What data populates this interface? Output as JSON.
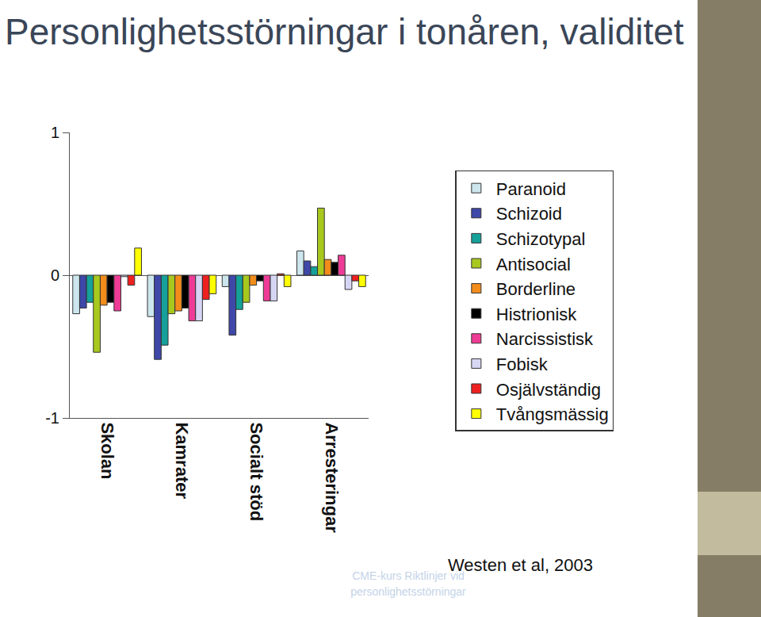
{
  "chart_data": {
    "type": "bar",
    "title": "Personlighetsstörningar i tonåren, validitet",
    "categories": [
      "Skolan",
      "Kamrater",
      "Socialt stöd",
      "Arresteringar"
    ],
    "series": [
      {
        "name": "Paranoid",
        "color": "#cde6ee",
        "values": [
          -0.27,
          -0.29,
          -0.08,
          0.17
        ]
      },
      {
        "name": "Schizoid",
        "color": "#3f48a8",
        "values": [
          -0.23,
          -0.59,
          -0.42,
          0.1
        ]
      },
      {
        "name": "Schizotypal",
        "color": "#16a09a",
        "values": [
          -0.19,
          -0.49,
          -0.24,
          0.06
        ]
      },
      {
        "name": "Antisocial",
        "color": "#a8c81e",
        "values": [
          -0.54,
          -0.27,
          -0.19,
          0.47
        ]
      },
      {
        "name": "Borderline",
        "color": "#f28c1a",
        "values": [
          -0.21,
          -0.25,
          -0.07,
          0.11
        ]
      },
      {
        "name": "Histrionisk",
        "color": "#000000",
        "values": [
          -0.19,
          -0.23,
          -0.04,
          0.09
        ]
      },
      {
        "name": "Narcissistisk",
        "color": "#ee3c96",
        "values": [
          -0.25,
          -0.32,
          -0.18,
          0.14
        ]
      },
      {
        "name": "Fobisk",
        "color": "#d6d6f4",
        "values": [
          -0.01,
          -0.32,
          -0.18,
          -0.1
        ]
      },
      {
        "name": "Osjälvständig",
        "color": "#ee2020",
        "values": [
          -0.07,
          -0.17,
          0.01,
          -0.04
        ]
      },
      {
        "name": "Tvångsmässig",
        "color": "#ffff00",
        "values": [
          0.19,
          -0.13,
          -0.08,
          -0.08
        ]
      }
    ],
    "ylim": [
      -1,
      1
    ],
    "yticks": [
      -1,
      0,
      1
    ],
    "grid": false,
    "legend": "right",
    "annotations": [
      "Westen et al, 2003",
      "CME-kurs Riktlinjer vid personlighetsstörningar"
    ]
  }
}
